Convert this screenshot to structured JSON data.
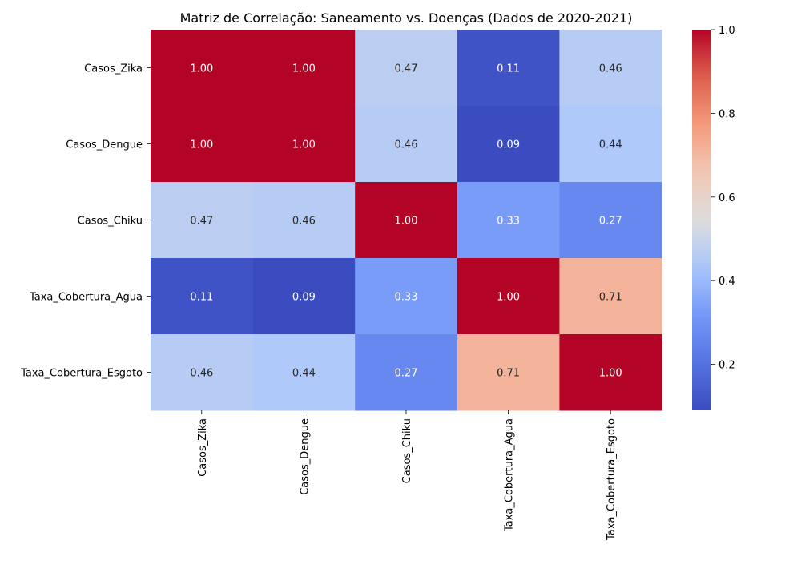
{
  "chart_data": {
    "type": "heatmap",
    "title": "Matriz de Correlação: Saneamento vs. Doenças (Dados de 2020-2021)",
    "rows": [
      "Casos_Zika",
      "Casos_Dengue",
      "Casos_Chiku",
      "Taxa_Cobertura_Agua",
      "Taxa_Cobertura_Esgoto"
    ],
    "columns": [
      "Casos_Zika",
      "Casos_Dengue",
      "Casos_Chiku",
      "Taxa_Cobertura_Agua",
      "Taxa_Cobertura_Esgoto"
    ],
    "values": [
      [
        1.0,
        1.0,
        0.47,
        0.11,
        0.46
      ],
      [
        1.0,
        1.0,
        0.46,
        0.09,
        0.44
      ],
      [
        0.47,
        0.46,
        1.0,
        0.33,
        0.27
      ],
      [
        0.11,
        0.09,
        0.33,
        1.0,
        0.71
      ],
      [
        0.46,
        0.44,
        0.27,
        0.71,
        1.0
      ]
    ],
    "labels": [
      [
        "1.00",
        "1.00",
        "0.47",
        "0.11",
        "0.46"
      ],
      [
        "1.00",
        "1.00",
        "0.46",
        "0.09",
        "0.44"
      ],
      [
        "0.47",
        "0.46",
        "1.00",
        "0.33",
        "0.27"
      ],
      [
        "0.11",
        "0.09",
        "0.33",
        "1.00",
        "0.71"
      ],
      [
        "0.46",
        "0.44",
        "0.27",
        "0.71",
        "1.00"
      ]
    ],
    "colormap": "coolwarm",
    "colorbar": {
      "range": [
        0.09,
        1.0
      ],
      "ticks": [
        0.2,
        0.4,
        0.6,
        0.8,
        1.0
      ],
      "tick_labels": [
        "0.2",
        "0.4",
        "0.6",
        "0.8",
        "1.0"
      ]
    }
  }
}
